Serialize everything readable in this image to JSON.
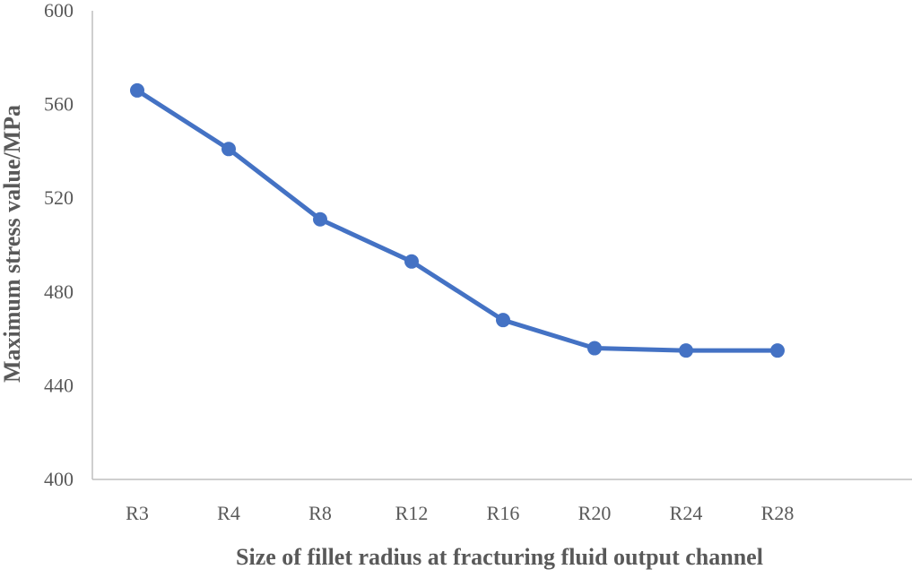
{
  "chart_data": {
    "type": "line",
    "title": "",
    "xlabel": "Size of fillet radius at fracturing fluid output channel",
    "ylabel": "Maximum stress value/MPa",
    "categories": [
      "R3",
      "R4",
      "R8",
      "R12",
      "R16",
      "R20",
      "R24",
      "R28"
    ],
    "series": [
      {
        "values": [
          566,
          541,
          511,
          493,
          468,
          456,
          455,
          455
        ],
        "color": "#4472C4"
      }
    ],
    "ylim": [
      400,
      600
    ],
    "yticks": [
      400,
      440,
      480,
      520,
      560,
      600
    ],
    "grid": false,
    "legend": "none"
  }
}
